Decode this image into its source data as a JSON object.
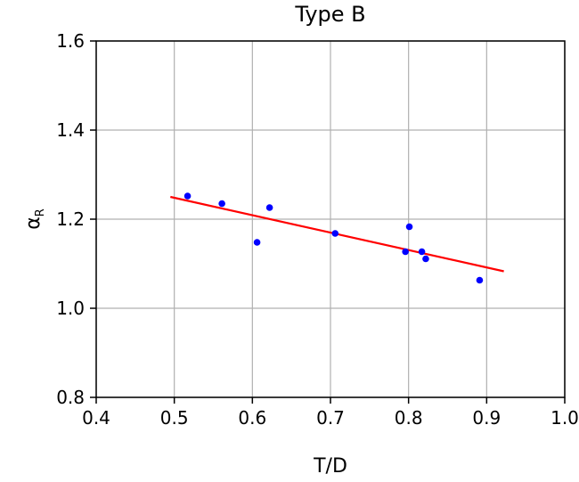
{
  "chart_data": {
    "type": "scatter",
    "title": "Type B",
    "xlabel": "T/D",
    "ylabel_symbol": "α",
    "ylabel_subscript": "R",
    "xlim": [
      0.4,
      1.0
    ],
    "ylim": [
      0.8,
      1.6
    ],
    "xticks": [
      0.4,
      0.5,
      0.6,
      0.7,
      0.8,
      0.9,
      1.0
    ],
    "xtick_labels": [
      "0.4",
      "0.5",
      "0.6",
      "0.7",
      "0.8",
      "0.9",
      "1.0"
    ],
    "yticks": [
      0.8,
      1.0,
      1.2,
      1.4,
      1.6
    ],
    "ytick_labels": [
      "0.8",
      "1.0",
      "1.2",
      "1.4",
      "1.6"
    ],
    "grid": true,
    "series": [
      {
        "kind": "points",
        "color": "#0000ff",
        "x": [
          0.517,
          0.561,
          0.606,
          0.622,
          0.706,
          0.796,
          0.801,
          0.817,
          0.822,
          0.891
        ],
        "y": [
          1.252,
          1.235,
          1.148,
          1.226,
          1.168,
          1.127,
          1.183,
          1.127,
          1.111,
          1.063
        ]
      },
      {
        "kind": "line",
        "color": "#ff0000",
        "x": [
          0.495,
          0.922
        ],
        "y": [
          1.25,
          1.083
        ]
      }
    ]
  }
}
